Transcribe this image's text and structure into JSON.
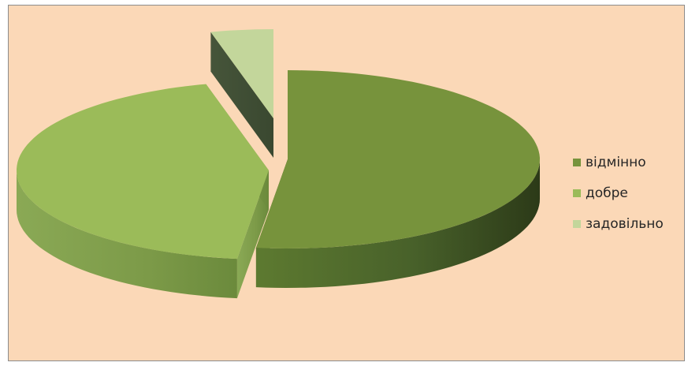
{
  "chart_data": {
    "type": "pie",
    "style": "3d-exploded",
    "categories": [
      "відмінно",
      "добре",
      "задовільно"
    ],
    "values": [
      52,
      44,
      4
    ],
    "colors": [
      "#77933c",
      "#9bbb59",
      "#c3d69b"
    ],
    "legend_position": "right",
    "title": ""
  }
}
